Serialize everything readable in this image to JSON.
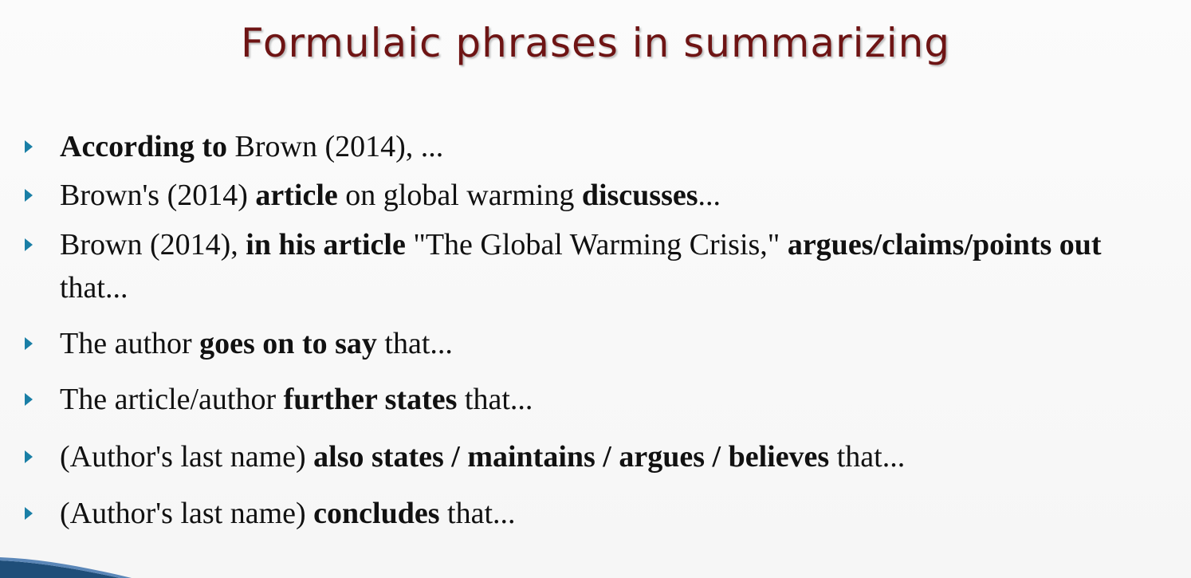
{
  "slide": {
    "title": "Formulaic phrases in summarizing",
    "bullets": [
      {
        "segments": [
          {
            "text": "According to",
            "bold": true
          },
          {
            "text": " Brown (2014), ...",
            "bold": false
          }
        ]
      },
      {
        "segments": [
          {
            "text": "Brown's (2014) ",
            "bold": false
          },
          {
            "text": "article",
            "bold": true
          },
          {
            "text": " on global warming ",
            "bold": false
          },
          {
            "text": "discusses",
            "bold": true
          },
          {
            "text": "...",
            "bold": false
          }
        ]
      },
      {
        "segments": [
          {
            "text": "Brown (2014), ",
            "bold": false
          },
          {
            "text": "in his article",
            "bold": true
          },
          {
            "text": " \"The Global Warming Crisis,\" ",
            "bold": false
          },
          {
            "text": "argues/claims/points out",
            "bold": true
          }
        ],
        "continuation": "that..."
      },
      {
        "segments": [
          {
            "text": "The author ",
            "bold": false
          },
          {
            "text": "goes on to say",
            "bold": true
          },
          {
            "text": " that...",
            "bold": false
          }
        ]
      },
      {
        "segments": [
          {
            "text": "The article/author ",
            "bold": false
          },
          {
            "text": "further states",
            "bold": true
          },
          {
            "text": " that...",
            "bold": false
          }
        ]
      },
      {
        "segments": [
          {
            "text": "(Author's last name) ",
            "bold": false
          },
          {
            "text": "also states / maintains / argues / believes",
            "bold": true
          },
          {
            "text": " that...",
            "bold": false
          }
        ]
      },
      {
        "segments": [
          {
            "text": "(Author's last name) ",
            "bold": false
          },
          {
            "text": "concludes",
            "bold": true
          },
          {
            "text": " that...",
            "bold": false
          }
        ]
      }
    ]
  },
  "colors": {
    "title": "#6e1414",
    "bullet_marker": "#1a7fa6",
    "text": "#111111",
    "corner_accent": "#1f4e79"
  },
  "icons": {
    "bullet": "triangle-right-icon"
  }
}
